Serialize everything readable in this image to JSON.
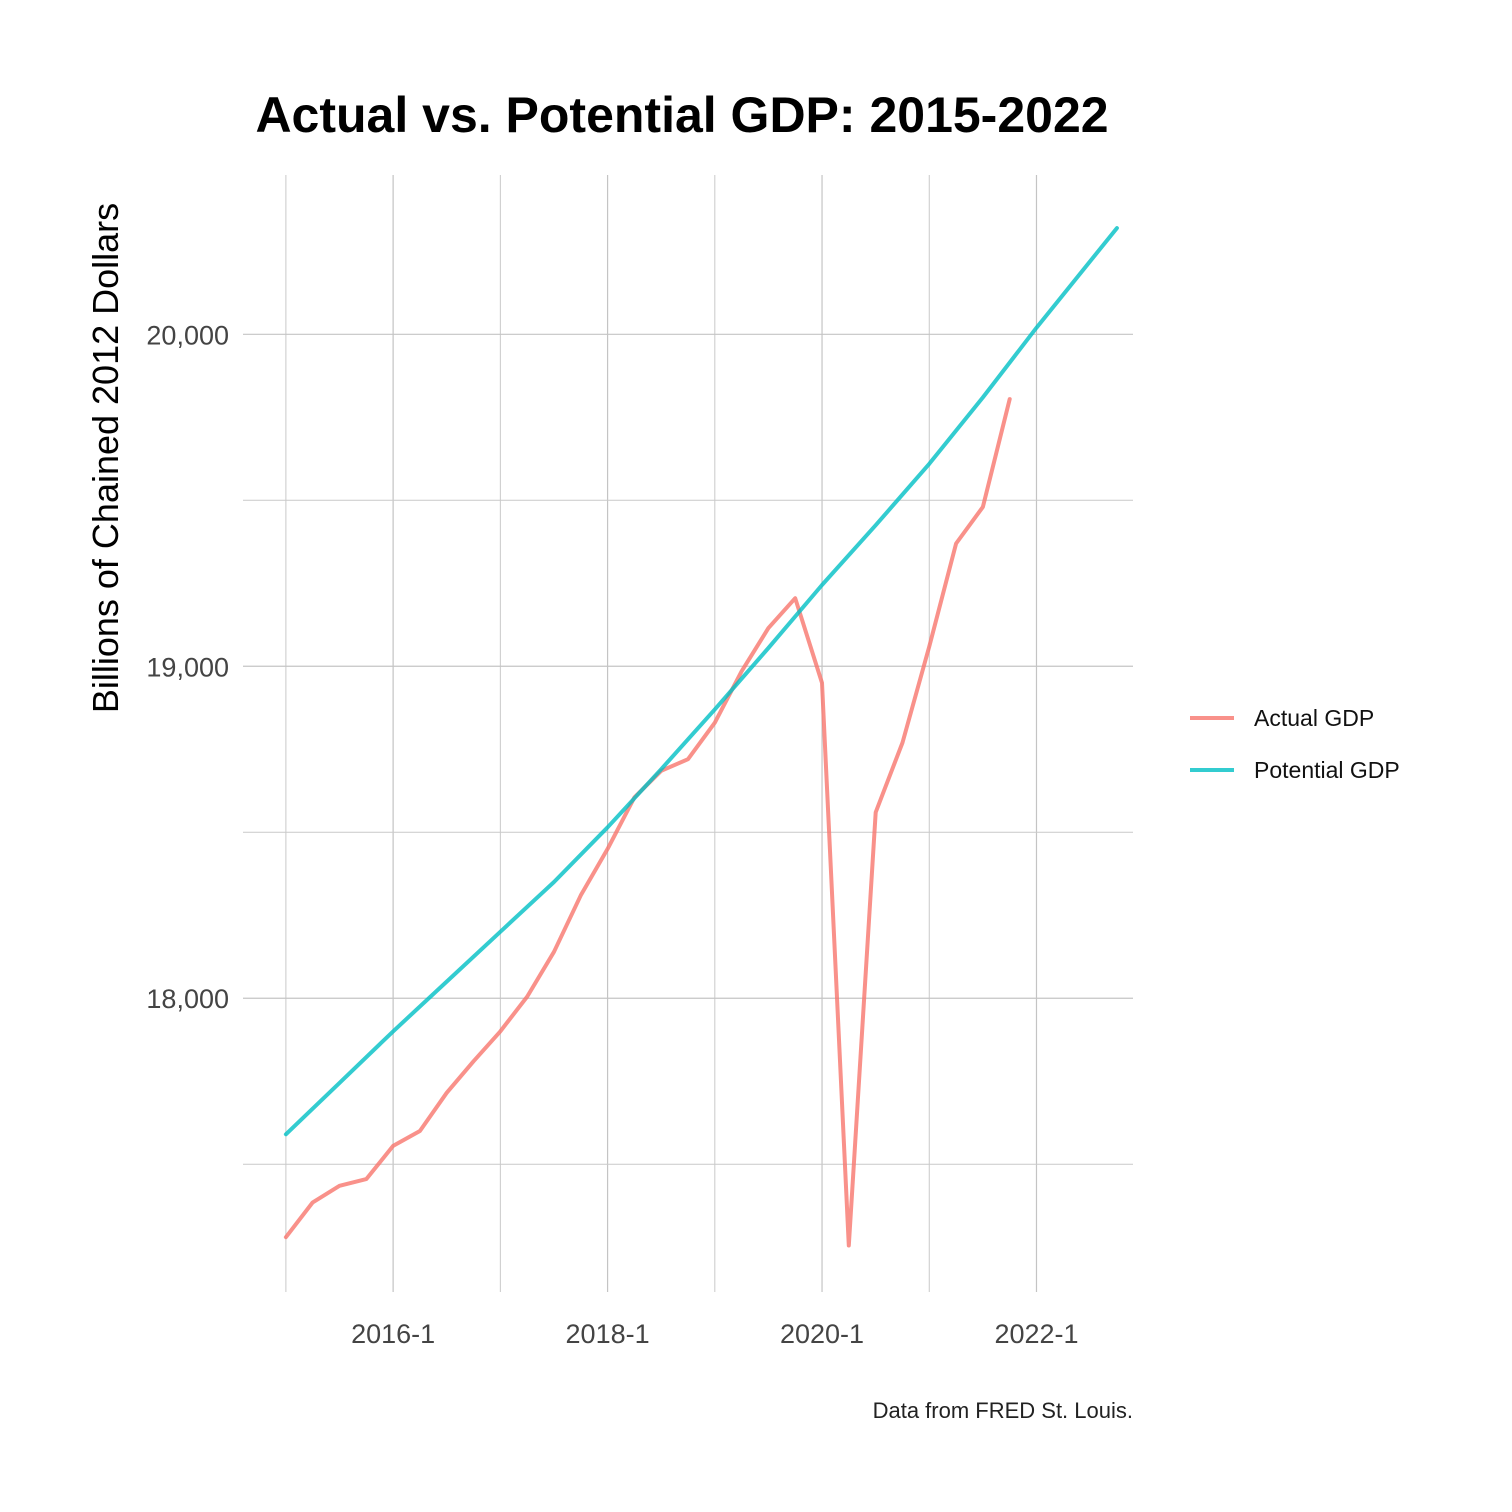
{
  "chart_data": {
    "type": "line",
    "title": "Actual vs. Potential GDP: 2015-2022",
    "ylabel": "Billions of Chained 2012 Dollars",
    "xlabel": "",
    "caption": "Data from FRED St. Louis.",
    "x_ticks": [
      "2016-1",
      "2018-1",
      "2020-1",
      "2022-1"
    ],
    "x_tick_values": [
      2016.0,
      2018.0,
      2020.0,
      2022.0
    ],
    "y_ticks": [
      "18,000",
      "19,000",
      "20,000"
    ],
    "y_tick_values": [
      18000,
      19000,
      20000
    ],
    "xlim": [
      2014.6,
      2022.9
    ],
    "ylim": [
      17115,
      20480
    ],
    "legend_position": "right",
    "grid": true,
    "series": [
      {
        "name": "Actual GDP",
        "color": "#F8766D",
        "x": [
          2015.0,
          2015.25,
          2015.5,
          2015.75,
          2016.0,
          2016.25,
          2016.5,
          2016.75,
          2017.0,
          2017.25,
          2017.5,
          2017.75,
          2018.0,
          2018.25,
          2018.5,
          2018.75,
          2019.0,
          2019.25,
          2019.5,
          2019.75,
          2020.0,
          2020.25,
          2020.5,
          2020.75,
          2021.0,
          2021.25,
          2021.5,
          2021.75
        ],
        "values": [
          17280,
          17385,
          17435,
          17455,
          17555,
          17600,
          17715,
          17810,
          17900,
          18005,
          18140,
          18310,
          18450,
          18605,
          18685,
          18720,
          18830,
          18985,
          19115,
          19205,
          18950,
          17255,
          18560,
          18770,
          19060,
          19370,
          19480,
          19805
        ]
      },
      {
        "name": "Potential GDP",
        "color": "#00BFC4",
        "x": [
          2015.0,
          2015.5,
          2016.0,
          2016.5,
          2017.0,
          2017.5,
          2018.0,
          2018.5,
          2019.0,
          2019.5,
          2020.0,
          2020.5,
          2021.0,
          2021.5,
          2022.0,
          2022.75
        ],
        "values": [
          17590,
          17745,
          17900,
          18050,
          18200,
          18350,
          18515,
          18690,
          18870,
          19055,
          19245,
          19425,
          19610,
          19810,
          20020,
          20320
        ]
      }
    ]
  }
}
